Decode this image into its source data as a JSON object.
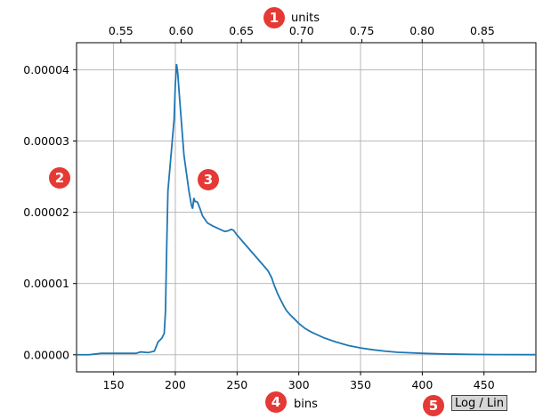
{
  "chart_data": {
    "type": "line",
    "xlabel": "bins",
    "x2label": "units",
    "xlim": [
      120,
      492
    ],
    "ylim": [
      -2.4e-06,
      4.38e-05
    ],
    "x_ticks": [
      150,
      200,
      250,
      300,
      350,
      400,
      450
    ],
    "x_tick_labels": [
      "150",
      "200",
      "250",
      "300",
      "350",
      "400",
      "450"
    ],
    "x2_ticks": [
      0.55,
      0.6,
      0.65,
      0.7,
      0.75,
      0.8,
      0.85
    ],
    "x2_tick_labels": [
      "0.55",
      "0.60",
      "0.65",
      "0.70",
      "0.75",
      "0.80",
      "0.85"
    ],
    "x2_range": [
      0.5132,
      0.8944
    ],
    "y_ticks": [
      0.0,
      1e-05,
      2e-05,
      3e-05,
      4e-05
    ],
    "y_tick_labels": [
      "0.00000",
      "0.00001",
      "0.00002",
      "0.00003",
      "0.00004"
    ],
    "grid": true,
    "color": "#1f77b4",
    "series": [
      {
        "x": [
          120,
          130,
          140,
          150,
          160,
          168,
          172,
          178,
          183,
          186,
          189,
          191,
          192,
          193,
          194,
          196,
          198,
          199,
          200,
          201,
          202,
          203,
          205,
          207,
          209,
          211,
          213,
          214,
          215,
          216,
          217,
          218,
          220,
          222,
          224,
          226,
          230,
          235,
          240,
          243,
          245,
          247,
          250,
          255,
          260,
          265,
          270,
          275,
          278,
          280,
          283,
          285,
          288,
          290,
          293,
          296,
          300,
          305,
          310,
          320,
          330,
          340,
          350,
          360,
          370,
          380,
          400,
          420,
          440,
          460,
          492
        ],
        "y": [
          0.0,
          0.0,
          2e-07,
          2e-07,
          2e-07,
          2e-07,
          4e-07,
          3e-07,
          5e-07,
          1.8e-06,
          2.3e-06,
          3e-06,
          6e-06,
          1.5e-05,
          2.3e-05,
          2.7e-05,
          3.1e-05,
          3.3e-05,
          3.8e-05,
          4.08e-05,
          3.95e-05,
          3.7e-05,
          3.25e-05,
          2.8e-05,
          2.55e-05,
          2.3e-05,
          2.1e-05,
          2.05e-05,
          2.2e-05,
          2.15e-05,
          2.15e-05,
          2.14e-05,
          2.05e-05,
          1.95e-05,
          1.9e-05,
          1.85e-05,
          1.81e-05,
          1.77e-05,
          1.73e-05,
          1.74e-05,
          1.76e-05,
          1.75e-05,
          1.68e-05,
          1.58e-05,
          1.48e-05,
          1.38e-05,
          1.28e-05,
          1.18e-05,
          1.08e-05,
          9.8e-06,
          8.5e-06,
          7.8e-06,
          6.8e-06,
          6.2e-06,
          5.6e-06,
          5.1e-06,
          4.4e-06,
          3.7e-06,
          3.2e-06,
          2.4e-06,
          1.8e-06,
          1.3e-06,
          9.5e-07,
          7e-07,
          5e-07,
          3.5e-07,
          2e-07,
          1e-07,
          5e-08,
          2e-08,
          1e-08
        ]
      }
    ]
  },
  "markers": [
    "1",
    "2",
    "3",
    "4",
    "5"
  ],
  "marker_color": "#e53935",
  "scale_toggle_label": "Log / Lin"
}
